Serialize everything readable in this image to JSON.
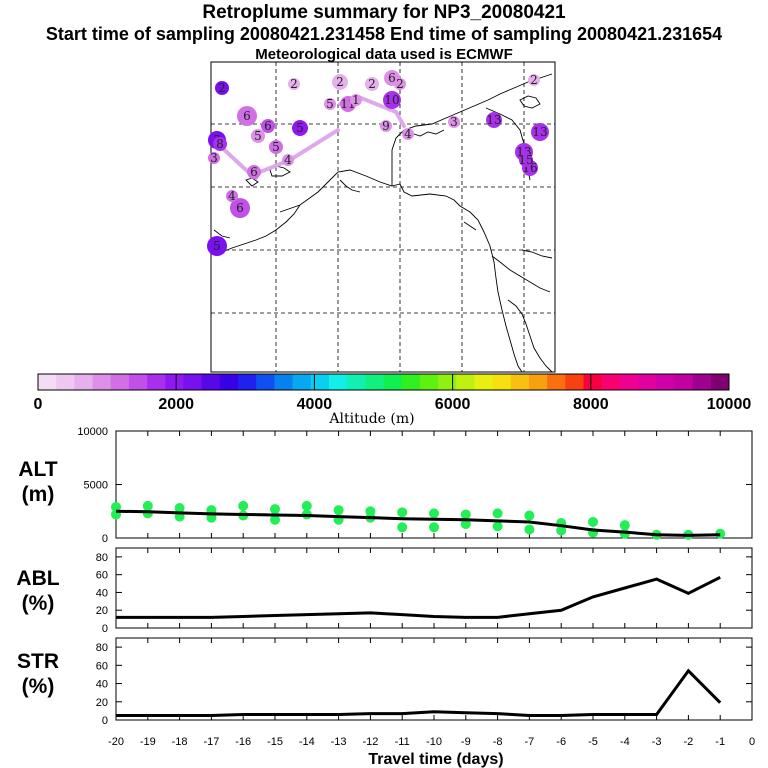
{
  "header": {
    "title": "Retroplume summary for NP3_20080421",
    "line2": "Start time of sampling 20080421.231458     End time of sampling 20080421.231654",
    "line3": "Meteorological data used is ECMWF"
  },
  "colorbar": {
    "label": "Altitude (m)",
    "ticks": [
      "0",
      "2000",
      "4000",
      "6000",
      "8000",
      "10000"
    ],
    "colors": [
      "#f5dcf5",
      "#eec8f0",
      "#e6b0ec",
      "#de90e8",
      "#d070e4",
      "#c050e8",
      "#a830ec",
      "#9018f0",
      "#7810f0",
      "#5808e8",
      "#3800e8",
      "#2020f0",
      "#1050f0",
      "#0880f0",
      "#08a8f0",
      "#08d0f0",
      "#10f0e8",
      "#10f0b0",
      "#10f080",
      "#10f050",
      "#30f020",
      "#60f010",
      "#90f010",
      "#c0f010",
      "#e8f010",
      "#f8e010",
      "#f8c010",
      "#f8a010",
      "#f87010",
      "#f84010",
      "#f80040",
      "#f80070",
      "#f00090",
      "#e000a0",
      "#d000a8",
      "#c000a0",
      "#a00090",
      "#800070"
    ]
  },
  "map": {
    "plume_points": [
      {
        "label": "2",
        "alt": 2200
      },
      {
        "label": "6",
        "alt": 1200
      },
      {
        "label": "6",
        "alt": 1500
      },
      {
        "label": "5",
        "alt": 2200
      },
      {
        "label": "5",
        "alt": 1100
      },
      {
        "label": "2",
        "alt": 700
      },
      {
        "label": "2",
        "alt": 600
      },
      {
        "label": "2",
        "alt": 700
      },
      {
        "label": "6",
        "alt": 800
      },
      {
        "label": "2",
        "alt": 900
      },
      {
        "label": "10",
        "alt": 1800
      },
      {
        "label": "5",
        "alt": 900
      },
      {
        "label": "11",
        "alt": 1200
      },
      {
        "label": "1",
        "alt": 800
      },
      {
        "label": "9",
        "alt": 900
      },
      {
        "label": "4",
        "alt": 900
      },
      {
        "label": "3",
        "alt": 900
      },
      {
        "label": "13",
        "alt": 1600
      },
      {
        "label": "13",
        "alt": 1700
      },
      {
        "label": "2",
        "alt": 700
      },
      {
        "label": "13",
        "alt": 1800
      },
      {
        "label": "16",
        "alt": 1800
      },
      {
        "label": "15",
        "alt": 1700
      },
      {
        "label": "6",
        "alt": 1300
      },
      {
        "label": "3",
        "alt": 2200
      },
      {
        "label": "8",
        "alt": 1600
      },
      {
        "label": "3",
        "alt": 1100
      },
      {
        "label": "5",
        "alt": 2000
      },
      {
        "label": "4",
        "alt": 1200
      },
      {
        "label": "6",
        "alt": 1400
      },
      {
        "label": "4",
        "alt": 900
      },
      {
        "label": "5",
        "alt": 1000
      }
    ]
  },
  "chart_data": [
    {
      "type": "scatter",
      "panel": "ALT",
      "title": "Retroplume summary for NP3_20080421",
      "ylabel": "ALT (m)",
      "xlabel": "Travel time (days)",
      "xlim": [
        -20,
        0
      ],
      "ylim": [
        0,
        10000
      ],
      "yticks": [
        0,
        5000,
        10000
      ],
      "median_line": {
        "x": [
          -20,
          -19,
          -18,
          -17,
          -16,
          -15,
          -14,
          -13,
          -12,
          -11,
          -10,
          -9,
          -8,
          -7,
          -6,
          -5,
          -4,
          -3,
          -2,
          -1
        ],
        "y": [
          2500,
          2450,
          2350,
          2250,
          2200,
          2150,
          2100,
          2000,
          1900,
          1800,
          1750,
          1700,
          1600,
          1500,
          1150,
          750,
          550,
          300,
          250,
          300
        ]
      },
      "points": [
        {
          "x": -20,
          "y": 2900
        },
        {
          "x": -20,
          "y": 2200
        },
        {
          "x": -19,
          "y": 3000
        },
        {
          "x": -19,
          "y": 2300
        },
        {
          "x": -18,
          "y": 2800
        },
        {
          "x": -18,
          "y": 2000
        },
        {
          "x": -17,
          "y": 2600
        },
        {
          "x": -17,
          "y": 1900
        },
        {
          "x": -16,
          "y": 3000
        },
        {
          "x": -16,
          "y": 2100
        },
        {
          "x": -15,
          "y": 2700
        },
        {
          "x": -15,
          "y": 1700
        },
        {
          "x": -14,
          "y": 3000
        },
        {
          "x": -14,
          "y": 2200
        },
        {
          "x": -13,
          "y": 2600
        },
        {
          "x": -13,
          "y": 1700
        },
        {
          "x": -12,
          "y": 2500
        },
        {
          "x": -12,
          "y": 1900
        },
        {
          "x": -11,
          "y": 2400
        },
        {
          "x": -11,
          "y": 1000
        },
        {
          "x": -10,
          "y": 2300
        },
        {
          "x": -10,
          "y": 1000
        },
        {
          "x": -9,
          "y": 2200
        },
        {
          "x": -9,
          "y": 1300
        },
        {
          "x": -8,
          "y": 2300
        },
        {
          "x": -8,
          "y": 1100
        },
        {
          "x": -7,
          "y": 2100
        },
        {
          "x": -7,
          "y": 800
        },
        {
          "x": -6,
          "y": 1400
        },
        {
          "x": -6,
          "y": 700
        },
        {
          "x": -5,
          "y": 1500
        },
        {
          "x": -5,
          "y": 500
        },
        {
          "x": -4,
          "y": 1200
        },
        {
          "x": -4,
          "y": 400
        },
        {
          "x": -3,
          "y": 300
        },
        {
          "x": -2,
          "y": 300
        },
        {
          "x": -1,
          "y": 400
        }
      ],
      "xticks": [
        "-20",
        "-19",
        "-18",
        "-17",
        "-16",
        "-15",
        "-14",
        "-13",
        "-12",
        "-11",
        "-10",
        "-9",
        "-8",
        "-7",
        "-6",
        "-5",
        "-4",
        "-3",
        "-2",
        "-1",
        "0"
      ]
    },
    {
      "type": "line",
      "panel": "ABL",
      "ylabel": "ABL (%)",
      "xlim": [
        -20,
        0
      ],
      "ylim": [
        0,
        90
      ],
      "yticks": [
        "0",
        "20",
        "40",
        "60",
        "80"
      ],
      "x": [
        -20,
        -19,
        -18,
        -17,
        -16,
        -15,
        -14,
        -13,
        -12,
        -11,
        -10,
        -9,
        -8,
        -7,
        -6,
        -5,
        -4,
        -3,
        -2,
        -1
      ],
      "y": [
        12,
        12,
        12,
        12,
        13,
        14,
        15,
        16,
        17,
        15,
        13,
        12,
        12,
        16,
        20,
        35,
        45,
        55,
        39,
        57
      ]
    },
    {
      "type": "line",
      "panel": "STR",
      "ylabel": "STR (%)",
      "xlim": [
        -20,
        0
      ],
      "ylim": [
        0,
        90
      ],
      "yticks": [
        "0",
        "20",
        "40",
        "60",
        "80"
      ],
      "x": [
        -20,
        -19,
        -18,
        -17,
        -16,
        -15,
        -14,
        -13,
        -12,
        -11,
        -10,
        -9,
        -8,
        -7,
        -6,
        -5,
        -4,
        -3,
        -2,
        -1
      ],
      "y": [
        5,
        5,
        5,
        5,
        6,
        6,
        6,
        6,
        7,
        7,
        9,
        8,
        7,
        5,
        5,
        6,
        6,
        6,
        54,
        19
      ]
    }
  ],
  "panels": {
    "alt_label_1": "ALT",
    "alt_label_2": "(m)",
    "abl_label_1": "ABL",
    "abl_label_2": "(%)",
    "str_label_1": "STR",
    "str_label_2": "(%)",
    "xlabel": "Travel time (days)",
    "alt_yticks": [
      "0",
      "5000",
      "10000"
    ]
  }
}
